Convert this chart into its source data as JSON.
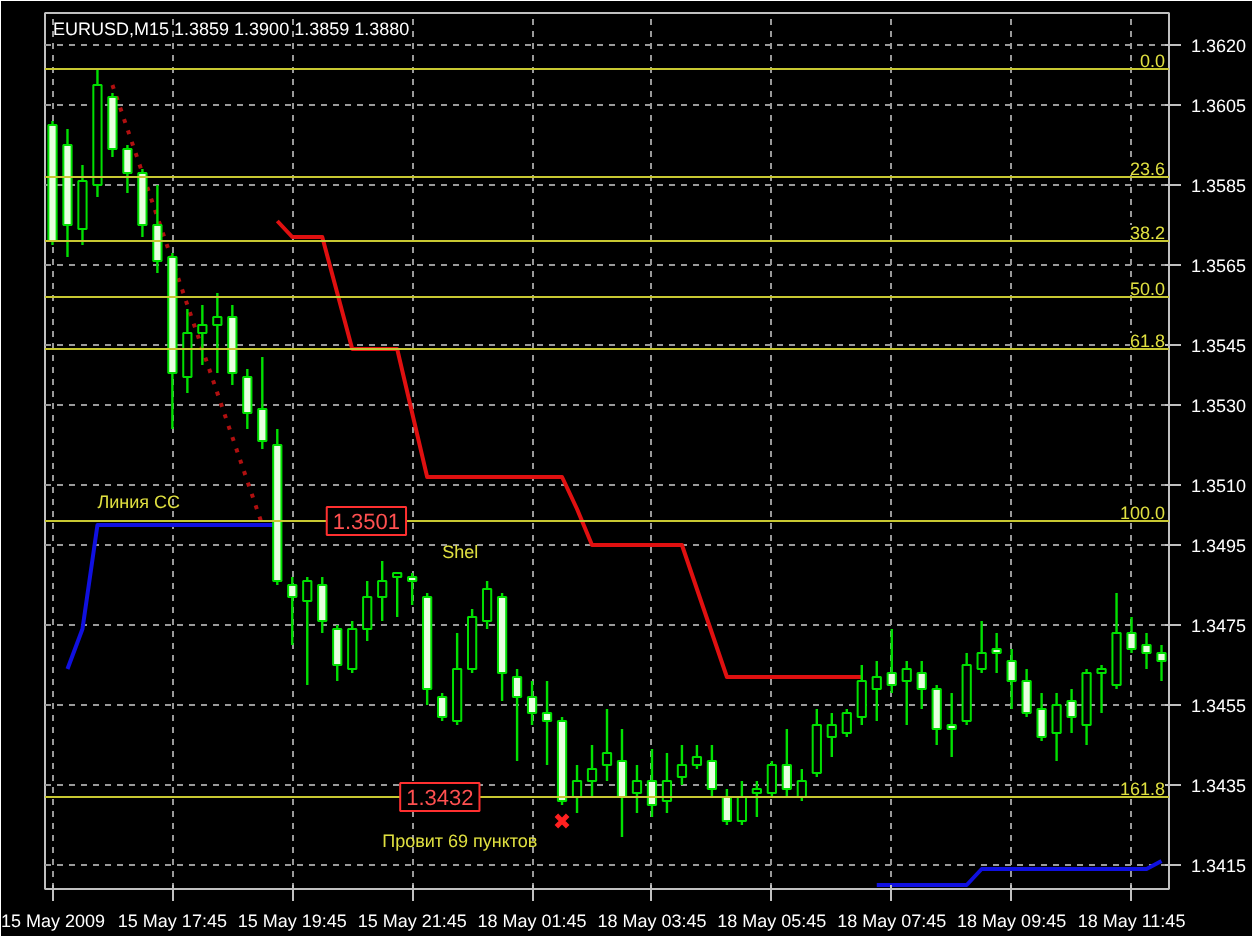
{
  "chart_data": {
    "type": "candlestick",
    "title": "EURUSD,M15  1.3859 1.3900 1.3859 1.3880",
    "color": "#00e000",
    "categories": [
      "15 May 2009",
      null,
      null,
      null,
      null,
      null,
      null,
      null,
      "15 May 17:45",
      null,
      null,
      null,
      null,
      null,
      null,
      null,
      "15 May 19:45",
      null,
      null,
      null,
      null,
      null,
      null,
      null,
      "15 May 21:45",
      null,
      null,
      null,
      null,
      null,
      null,
      null,
      "18 May 01:45",
      null,
      null,
      null,
      null,
      null,
      null,
      null,
      "18 May 03:45",
      null,
      null,
      null,
      null,
      null,
      null,
      null,
      "18 May 05:45",
      null,
      null,
      null,
      null,
      null,
      null,
      null,
      "18 May 07:45",
      null,
      null,
      null,
      null,
      null,
      null,
      null,
      "18 May 09:45",
      null,
      null,
      null,
      null,
      null,
      null,
      null,
      "18 May 11:45",
      null,
      null
    ],
    "ohlc": [
      [
        1.36,
        1.3601,
        1.357,
        1.3571
      ],
      [
        1.3595,
        1.3599,
        1.3567,
        1.3575
      ],
      [
        1.3574,
        1.359,
        1.357,
        1.3586
      ],
      [
        1.3585,
        1.3614,
        1.3582,
        1.361
      ],
      [
        1.3607,
        1.3608,
        1.3592,
        1.3594
      ],
      [
        1.3594,
        1.3595,
        1.3583,
        1.3588
      ],
      [
        1.3588,
        1.3589,
        1.3572,
        1.3575
      ],
      [
        1.3575,
        1.3585,
        1.3563,
        1.3566
      ],
      [
        1.3567,
        1.3568,
        1.3524,
        1.3538
      ],
      [
        1.3537,
        1.3554,
        1.3533,
        1.3548
      ],
      [
        1.3548,
        1.3555,
        1.354,
        1.355
      ],
      [
        1.355,
        1.3558,
        1.3538,
        1.3552
      ],
      [
        1.3552,
        1.3555,
        1.3535,
        1.3538
      ],
      [
        1.3537,
        1.3539,
        1.3524,
        1.3528
      ],
      [
        1.3529,
        1.3542,
        1.3519,
        1.3521
      ],
      [
        1.352,
        1.3524,
        1.3485,
        1.3486
      ],
      [
        1.3485,
        1.3487,
        1.347,
        1.3482
      ],
      [
        1.3481,
        1.3487,
        1.346,
        1.3486
      ],
      [
        1.3485,
        1.3487,
        1.3473,
        1.3476
      ],
      [
        1.3474,
        1.3475,
        1.3461,
        1.3465
      ],
      [
        1.3464,
        1.3476,
        1.3463,
        1.3474
      ],
      [
        1.3474,
        1.3486,
        1.3471,
        1.3482
      ],
      [
        1.3482,
        1.3491,
        1.3476,
        1.3486
      ],
      [
        1.3487,
        1.3488,
        1.3477,
        1.3488
      ],
      [
        1.3487,
        1.3488,
        1.348,
        1.3486
      ],
      [
        1.3482,
        1.3483,
        1.3455,
        1.3459
      ],
      [
        1.3457,
        1.3458,
        1.3451,
        1.3452
      ],
      [
        1.3451,
        1.3473,
        1.345,
        1.3464
      ],
      [
        1.3464,
        1.3479,
        1.3463,
        1.3477
      ],
      [
        1.3476,
        1.3486,
        1.3474,
        1.3484
      ],
      [
        1.3482,
        1.3483,
        1.3456,
        1.3463
      ],
      [
        1.3462,
        1.3464,
        1.3441,
        1.3457
      ],
      [
        1.3457,
        1.3461,
        1.345,
        1.3453
      ],
      [
        1.3453,
        1.3461,
        1.344,
        1.3451
      ],
      [
        1.3451,
        1.3452,
        1.343,
        1.3431
      ],
      [
        1.3432,
        1.344,
        1.3428,
        1.3436
      ],
      [
        1.3436,
        1.3445,
        1.3432,
        1.3439
      ],
      [
        1.344,
        1.3454,
        1.3436,
        1.3443
      ],
      [
        1.3441,
        1.3449,
        1.3422,
        1.3432
      ],
      [
        1.3433,
        1.344,
        1.3428,
        1.3436
      ],
      [
        1.3436,
        1.3444,
        1.3427,
        1.343
      ],
      [
        1.3431,
        1.3443,
        1.3428,
        1.3436
      ],
      [
        1.3437,
        1.3445,
        1.3435,
        1.344
      ],
      [
        1.344,
        1.3445,
        1.3439,
        1.3442
      ],
      [
        1.3441,
        1.3445,
        1.3432,
        1.3434
      ],
      [
        1.3432,
        1.3434,
        1.3425,
        1.3426
      ],
      [
        1.3426,
        1.3436,
        1.3425,
        1.3432
      ],
      [
        1.3433,
        1.3436,
        1.3427,
        1.3434
      ],
      [
        1.3433,
        1.3441,
        1.3432,
        1.344
      ],
      [
        1.344,
        1.3449,
        1.3432,
        1.3434
      ],
      [
        1.3432,
        1.3439,
        1.3431,
        1.3436
      ],
      [
        1.3438,
        1.3454,
        1.3437,
        1.345
      ],
      [
        1.3447,
        1.3453,
        1.3442,
        1.345
      ],
      [
        1.3448,
        1.3454,
        1.3447,
        1.3453
      ],
      [
        1.3452,
        1.3465,
        1.345,
        1.3461
      ],
      [
        1.3459,
        1.3466,
        1.3451,
        1.3462
      ],
      [
        1.3463,
        1.3474,
        1.3458,
        1.346
      ],
      [
        1.3461,
        1.3466,
        1.345,
        1.3464
      ],
      [
        1.3463,
        1.3466,
        1.3454,
        1.3459
      ],
      [
        1.3459,
        1.346,
        1.3445,
        1.3449
      ],
      [
        1.345,
        1.3458,
        1.3442,
        1.3449
      ],
      [
        1.3451,
        1.3468,
        1.345,
        1.3465
      ],
      [
        1.3464,
        1.3476,
        1.3463,
        1.3468
      ],
      [
        1.3469,
        1.3473,
        1.3463,
        1.3468
      ],
      [
        1.3466,
        1.3469,
        1.3454,
        1.3461
      ],
      [
        1.3461,
        1.3464,
        1.3452,
        1.3453
      ],
      [
        1.3454,
        1.3458,
        1.3446,
        1.3447
      ],
      [
        1.3448,
        1.3458,
        1.3441,
        1.3455
      ],
      [
        1.3456,
        1.3459,
        1.3448,
        1.3452
      ],
      [
        1.345,
        1.3464,
        1.3445,
        1.3463
      ],
      [
        1.3463,
        1.3465,
        1.3453,
        1.3464
      ],
      [
        1.346,
        1.3483,
        1.3459,
        1.3473
      ],
      [
        1.3473,
        1.3477,
        1.3468,
        1.3469
      ],
      [
        1.347,
        1.3473,
        1.3464,
        1.3468
      ],
      [
        1.3468,
        1.347,
        1.3461,
        1.3466
      ]
    ],
    "series": [
      {
        "type": "line",
        "color": "#e01010",
        "values": [
          null,
          null,
          null,
          null,
          null,
          null,
          null,
          null,
          null,
          null,
          null,
          null,
          null,
          null,
          null,
          1.3576,
          1.3572,
          1.3572,
          1.3572,
          1.3558,
          1.3544,
          1.3544,
          1.3544,
          1.3544,
          1.3528,
          1.3512,
          1.3512,
          1.3512,
          1.3512,
          1.3512,
          1.3512,
          1.3512,
          1.3512,
          1.3512,
          1.3512,
          1.3504,
          1.3495,
          1.3495,
          1.3495,
          1.3495,
          1.3495,
          1.3495,
          1.3495,
          1.3484,
          1.3473,
          1.3462,
          1.3462,
          1.3462,
          1.3462,
          1.3462,
          1.3462,
          1.3462,
          1.3462,
          1.3462,
          1.3462,
          null,
          null,
          null,
          null,
          null,
          null,
          null,
          null,
          null,
          null,
          null,
          null,
          null,
          null,
          null,
          null,
          null,
          null,
          null,
          null
        ]
      },
      {
        "type": "line",
        "color": "#1010e0",
        "values": [
          null,
          1.3464,
          1.3474,
          1.35,
          1.35,
          1.35,
          1.35,
          1.35,
          1.35,
          1.35,
          1.35,
          1.35,
          1.35,
          1.35,
          1.35,
          1.35,
          null,
          null,
          null,
          null,
          null,
          null,
          null,
          null,
          null,
          null,
          null,
          null,
          null,
          null,
          null,
          null,
          null,
          null,
          null,
          null,
          null,
          null,
          null,
          null,
          null,
          null,
          null,
          null,
          null,
          null,
          null,
          null,
          null,
          null,
          null,
          null,
          null,
          null,
          null,
          1.341,
          1.341,
          1.341,
          1.341,
          1.341,
          1.341,
          1.341,
          1.3414,
          1.3414,
          1.3414,
          1.3414,
          1.3414,
          1.3414,
          1.3414,
          1.3414,
          1.3414,
          1.3414,
          1.3414,
          1.3414,
          1.3416
        ]
      },
      {
        "type": "line",
        "color": "#b01010",
        "line_style": "dotted",
        "values": [
          null,
          null,
          null,
          null,
          1.361,
          1.3599,
          1.3588,
          1.3577,
          1.3566,
          1.3555,
          1.3544,
          1.3533,
          1.3522,
          1.3511,
          1.35,
          null,
          null,
          null,
          null,
          null,
          null,
          null,
          null,
          null,
          null,
          null,
          null,
          null,
          null,
          null,
          null,
          null,
          null,
          null,
          null,
          null,
          null,
          null,
          null,
          null,
          null,
          null,
          null,
          null,
          null,
          null,
          null,
          null,
          null,
          null,
          null,
          null,
          null,
          null,
          null,
          null,
          null,
          null,
          null,
          null,
          null,
          null,
          null,
          null,
          null,
          null,
          null,
          null,
          null,
          null,
          null,
          null,
          null,
          null,
          null
        ]
      },
      {
        "type": "scatter",
        "color": "#ff2020",
        "marker": "cross",
        "values": [
          null,
          null,
          null,
          null,
          null,
          null,
          null,
          null,
          null,
          null,
          null,
          null,
          null,
          null,
          null,
          null,
          null,
          null,
          null,
          null,
          null,
          null,
          null,
          null,
          null,
          null,
          null,
          null,
          null,
          null,
          null,
          null,
          null,
          null,
          1.3426,
          null,
          null,
          null,
          null,
          null,
          null,
          null,
          null,
          null,
          null,
          null,
          null,
          null,
          null,
          null,
          null,
          null,
          null,
          null,
          null,
          null,
          null,
          null,
          null,
          null,
          null,
          null,
          null,
          null,
          null,
          null,
          null,
          null,
          null,
          null,
          null,
          null,
          null,
          null,
          null
        ]
      }
    ],
    "ref_lines": [
      {
        "axis": "y",
        "value": 1.3614,
        "color": "#c8c832"
      },
      {
        "axis": "y",
        "value": 1.3587,
        "color": "#c8c832"
      },
      {
        "axis": "y",
        "value": 1.3571,
        "color": "#c8c832"
      },
      {
        "axis": "y",
        "value": 1.3557,
        "color": "#c8c832"
      },
      {
        "axis": "y",
        "value": 1.3544,
        "color": "#c8c832"
      },
      {
        "axis": "y",
        "value": 1.3501,
        "color": "#c8c832"
      },
      {
        "axis": "y",
        "value": 1.3432,
        "color": "#c8c832"
      }
    ],
    "annotations": [
      {
        "text": "0.0",
        "y": 1.3614
      },
      {
        "text": "23.6",
        "y": 1.3587
      },
      {
        "text": "38.2",
        "y": 1.3571
      },
      {
        "text": "50.0",
        "y": 1.3557
      },
      {
        "text": "61.8",
        "y": 1.3544
      },
      {
        "text": "100.0",
        "y": 1.3501
      },
      {
        "text": "161.8",
        "y": 1.3432
      },
      "Линия СС",
      "1.3501",
      "Shel",
      "1.3432",
      "Провит 69 пунктов"
    ],
    "ylim": [
      1.3409,
      1.3628
    ],
    "yticks": [
      {
        "value": 1.362,
        "label": "1.3620"
      },
      1.3605,
      1.3585,
      1.3565,
      1.3545,
      {
        "value": 1.353,
        "label": "1.3530"
      },
      {
        "value": 1.351,
        "label": "1.3510"
      },
      1.3495,
      1.3475,
      1.3455,
      1.3435,
      1.3415
    ],
    "grid": true
  }
}
